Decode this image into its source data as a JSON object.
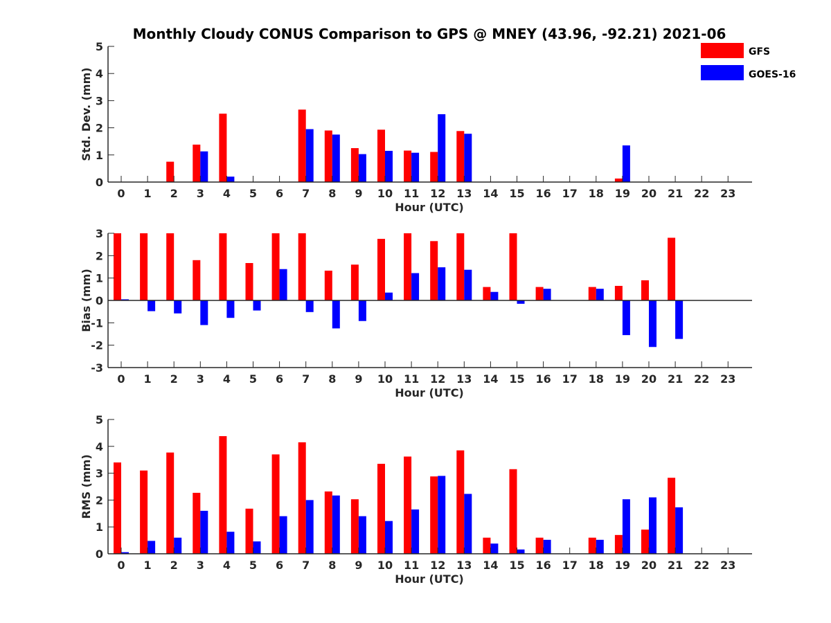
{
  "title": "Monthly Cloudy CONUS Comparison to GPS @ MNEY (43.96, -92.21) 2021-06",
  "legend": [
    {
      "name": "GFS",
      "color": "#ff0000"
    },
    {
      "name": "GOES-16",
      "color": "#0000ff"
    }
  ],
  "chart_data": [
    {
      "type": "bar",
      "xlabel": "Hour (UTC)",
      "ylabel": "Std. Dev. (mm)",
      "ylim": [
        0,
        5
      ],
      "yticks": [
        0,
        1,
        2,
        3,
        4,
        5
      ],
      "categories": [
        "0",
        "1",
        "2",
        "3",
        "4",
        "5",
        "6",
        "7",
        "8",
        "9",
        "10",
        "11",
        "12",
        "13",
        "14",
        "15",
        "16",
        "17",
        "18",
        "19",
        "20",
        "21",
        "22",
        "23"
      ],
      "series": [
        {
          "name": "GFS",
          "values": [
            0,
            0,
            0.75,
            1.38,
            2.52,
            0,
            0,
            2.67,
            1.9,
            1.25,
            1.93,
            1.16,
            1.11,
            1.88,
            0,
            0,
            0,
            0,
            0,
            0.13,
            0,
            0,
            0,
            0
          ]
        },
        {
          "name": "GOES-16",
          "values": [
            0,
            0,
            0,
            1.13,
            0.2,
            0,
            0,
            1.95,
            1.75,
            1.03,
            1.15,
            1.08,
            2.5,
            1.78,
            0,
            0,
            0,
            0,
            0,
            1.35,
            0,
            0,
            0,
            0
          ]
        }
      ]
    },
    {
      "type": "bar",
      "xlabel": "Hour (UTC)",
      "ylabel": "Bias (mm)",
      "ylim": [
        -3,
        3
      ],
      "yticks": [
        -3,
        -2,
        -1,
        0,
        1,
        2,
        3
      ],
      "categories": [
        "0",
        "1",
        "2",
        "3",
        "4",
        "5",
        "6",
        "7",
        "8",
        "9",
        "10",
        "11",
        "12",
        "13",
        "14",
        "15",
        "16",
        "17",
        "18",
        "19",
        "20",
        "21",
        "22",
        "23"
      ],
      "series": [
        {
          "name": "GFS",
          "values": [
            3,
            3,
            3,
            1.8,
            3,
            1.67,
            3,
            3,
            1.33,
            1.6,
            2.75,
            3,
            2.65,
            3,
            0.6,
            3,
            0.6,
            0,
            0.6,
            0.65,
            0.9,
            2.8,
            0,
            0
          ]
        },
        {
          "name": "GOES-16",
          "values": [
            0.05,
            -0.48,
            -0.58,
            -1.1,
            -0.78,
            -0.45,
            1.4,
            -0.52,
            -1.25,
            -0.92,
            0.35,
            1.22,
            1.48,
            1.37,
            0.38,
            -0.15,
            0.52,
            0,
            0.52,
            -1.55,
            -2.08,
            -1.72,
            0,
            0
          ]
        }
      ]
    },
    {
      "type": "bar",
      "xlabel": "Hour (UTC)",
      "ylabel": "RMS (mm)",
      "ylim": [
        0,
        5
      ],
      "yticks": [
        0,
        1,
        2,
        3,
        4,
        5
      ],
      "categories": [
        "0",
        "1",
        "2",
        "3",
        "4",
        "5",
        "6",
        "7",
        "8",
        "9",
        "10",
        "11",
        "12",
        "13",
        "14",
        "15",
        "16",
        "17",
        "18",
        "19",
        "20",
        "21",
        "22",
        "23"
      ],
      "series": [
        {
          "name": "GFS",
          "values": [
            3.4,
            3.1,
            3.77,
            2.27,
            4.38,
            1.68,
            3.7,
            4.15,
            2.32,
            2.03,
            3.35,
            3.62,
            2.88,
            3.85,
            0.6,
            3.15,
            0.6,
            0,
            0.6,
            0.7,
            0.9,
            2.83,
            0,
            0
          ]
        },
        {
          "name": "GOES-16",
          "values": [
            0.06,
            0.48,
            0.6,
            1.6,
            0.82,
            0.46,
            1.4,
            2.0,
            2.17,
            1.4,
            1.22,
            1.65,
            2.9,
            2.23,
            0.38,
            0.16,
            0.52,
            0,
            0.52,
            2.03,
            2.1,
            1.73,
            0,
            0
          ]
        }
      ]
    }
  ]
}
